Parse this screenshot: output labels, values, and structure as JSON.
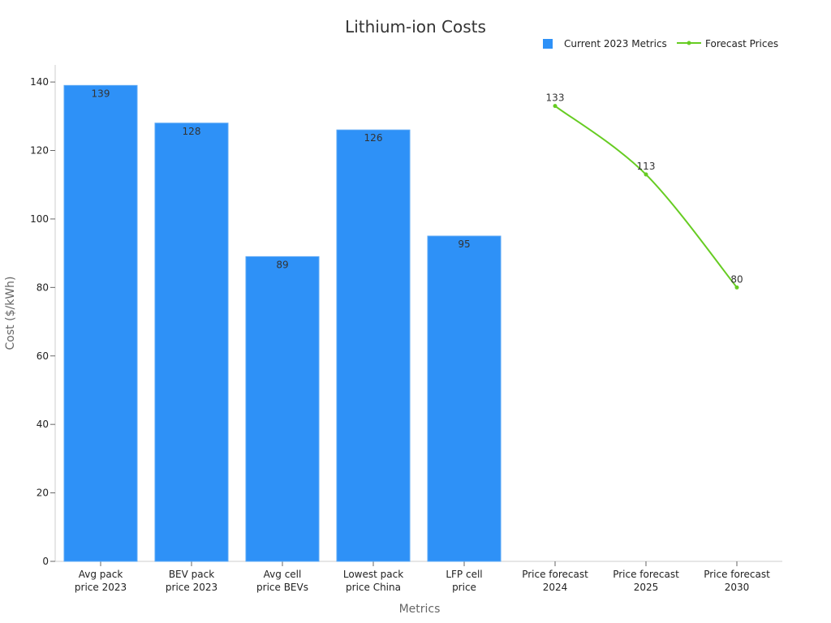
{
  "chart_data": {
    "type": "bar",
    "title": "Lithium-ion Costs",
    "xlabel": "Metrics",
    "ylabel": "Cost ($/kWh)",
    "ylim": [
      0,
      145
    ],
    "yticks": [
      0,
      20,
      40,
      60,
      80,
      100,
      120,
      140
    ],
    "categories": [
      [
        "Avg pack",
        "price 2023"
      ],
      [
        "BEV pack",
        "price 2023"
      ],
      [
        "Avg cell",
        "price BEVs"
      ],
      [
        "Lowest pack",
        "price China"
      ],
      [
        "LFP cell",
        "price"
      ],
      [
        "Price forecast",
        "2024"
      ],
      [
        "Price forecast",
        "2025"
      ],
      [
        "Price forecast",
        "2030"
      ]
    ],
    "series": [
      {
        "name": "Current 2023 Metrics",
        "type": "bar",
        "color": "#2e91f7",
        "values": [
          139,
          128,
          89,
          126,
          95,
          null,
          null,
          null
        ]
      },
      {
        "name": "Forecast Prices",
        "type": "line",
        "color": "#66cc22",
        "values": [
          null,
          null,
          null,
          null,
          null,
          133,
          113,
          80
        ]
      }
    ],
    "legend_position": "top-right",
    "grid": false
  }
}
